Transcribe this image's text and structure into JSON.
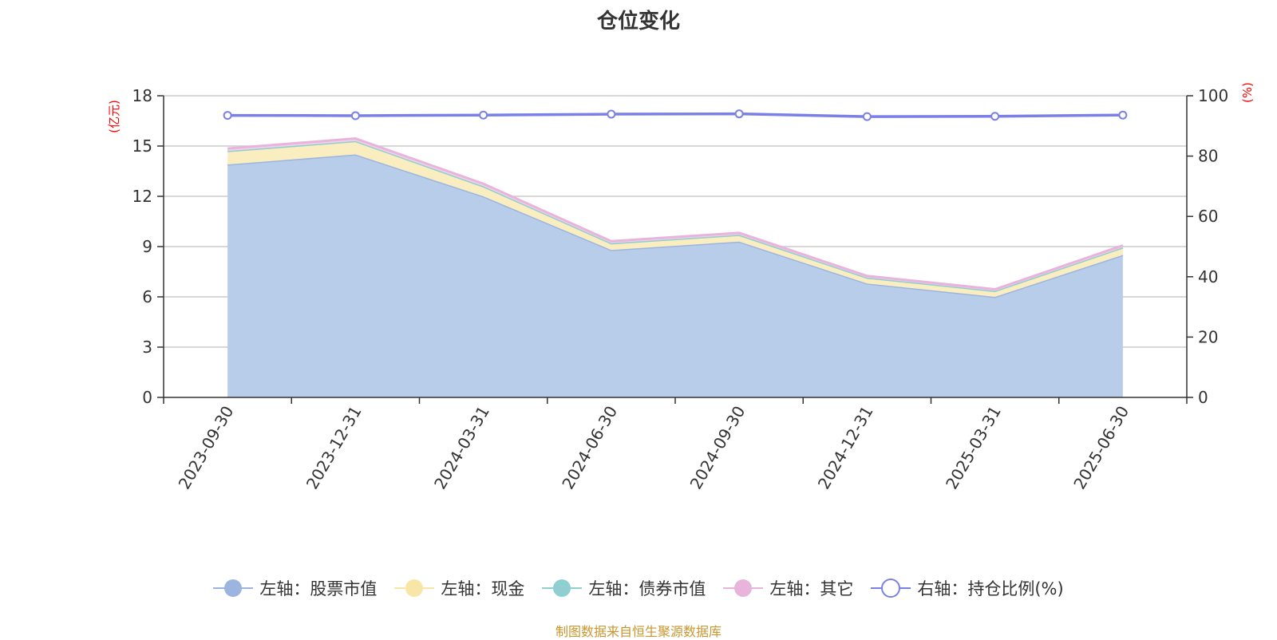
{
  "title": "仓位变化",
  "source_note": "制图数据来自恒生聚源数据库",
  "left_axis_unit": "(亿元)",
  "right_axis_unit": "(%)",
  "chart_data": {
    "type": "area",
    "x": [
      "2023-09-30",
      "2023-12-31",
      "2024-03-31",
      "2024-06-30",
      "2024-09-30",
      "2024-12-31",
      "2025-03-31",
      "2025-06-30"
    ],
    "left_axis": {
      "ylim": [
        0,
        18
      ],
      "ticks": [
        0,
        3,
        6,
        9,
        12,
        15,
        18
      ]
    },
    "right_axis": {
      "ylim": [
        0,
        100
      ],
      "ticks": [
        0,
        20,
        40,
        60,
        80,
        100
      ]
    },
    "stacked": true,
    "series": [
      {
        "name": "左轴：股票市值",
        "axis": "left",
        "kind": "area",
        "color": "#9bb5e0",
        "fill": "#b8cdea",
        "values": [
          13.9,
          14.5,
          12.0,
          8.8,
          9.3,
          6.8,
          6.0,
          8.5
        ]
      },
      {
        "name": "左轴：现金",
        "axis": "left",
        "kind": "area",
        "color": "#f7e6a6",
        "fill": "#faeec0",
        "values": [
          0.8,
          0.8,
          0.6,
          0.4,
          0.4,
          0.35,
          0.35,
          0.45
        ]
      },
      {
        "name": "左轴：债券市值",
        "axis": "left",
        "kind": "area",
        "color": "#8fcfd0",
        "fill": "#b3e0e0",
        "values": [
          0,
          0,
          0,
          0,
          0,
          0,
          0,
          0
        ]
      },
      {
        "name": "左轴：其它",
        "axis": "left",
        "kind": "area",
        "color": "#e8b4dc",
        "fill": "#f2d2ea",
        "values": [
          0.15,
          0.15,
          0.15,
          0.12,
          0.12,
          0.1,
          0.1,
          0.12
        ]
      },
      {
        "name": "右轴：持仓比例(%)",
        "axis": "right",
        "kind": "line",
        "color": "#7b80e8",
        "values": [
          93.5,
          93.4,
          93.6,
          93.9,
          94.0,
          93.1,
          93.2,
          93.6
        ]
      }
    ]
  }
}
